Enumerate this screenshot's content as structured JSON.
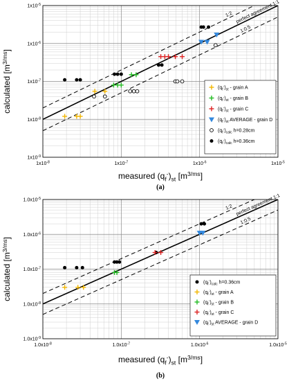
{
  "chart_data": [
    {
      "type": "scatter",
      "panel_label": "(a)",
      "xlabel": "measured (q_f^-)_st [m^3/ms]",
      "ylabel": "calculated [m^3/ms]",
      "log_x": true,
      "log_y": true,
      "xlim": [
        1e-08,
        1e-05
      ],
      "ylim": [
        1e-09,
        1e-05
      ],
      "x_ticks": [
        "1x10-8",
        "1x10-7",
        "1x10-6",
        "1x10-5"
      ],
      "y_ticks": [
        "1x10-5",
        "1x10-6",
        "1x10-7",
        "1x10-8",
        "1x10-9"
      ],
      "grid": true,
      "legend_position": "bottom-right",
      "reference_lines": [
        {
          "label": "perfect agreement 1:1",
          "factor": 1,
          "style": "solid"
        },
        {
          "label": "1:2",
          "factor": 2,
          "style": "dashed"
        },
        {
          "label": "1:0.5",
          "factor": 0.5,
          "style": "dashed"
        }
      ],
      "series": [
        {
          "name": "(q_f^-)_st - grain A",
          "marker": "plus",
          "color": "#f2b600",
          "points": [
            [
              1.9e-08,
              1.2e-08
            ],
            [
              2.7e-08,
              1.2e-08
            ],
            [
              3e-08,
              1.2e-08
            ],
            [
              4.6e-08,
              5.5e-08
            ],
            [
              6.2e-08,
              5.5e-08
            ]
          ]
        },
        {
          "name": "(q_f^-)_st - grain B",
          "marker": "plus",
          "color": "#22bb22",
          "points": [
            [
              8e-08,
              8e-08
            ],
            [
              9e-08,
              8e-08
            ],
            [
              1e-07,
              8e-08
            ],
            [
              1.35e-07,
              1.5e-07
            ],
            [
              1.55e-07,
              1.5e-07
            ]
          ]
        },
        {
          "name": "(q_f^-)_st - grain C",
          "marker": "plus",
          "color": "#dd2222",
          "points": [
            [
              3.2e-07,
              4.5e-07
            ],
            [
              3.6e-07,
              4.5e-07
            ],
            [
              4e-07,
              4.5e-07
            ],
            [
              4.9e-07,
              4.5e-07
            ],
            [
              6e-07,
              4.5e-07
            ]
          ]
        },
        {
          "name": "(q_f^-)_st AVERAGE - grain D",
          "marker": "triangle-down",
          "color": "#3388dd",
          "points": [
            [
              1.05e-06,
              1.1e-06
            ],
            [
              1.25e-06,
              1.1e-06
            ],
            [
              1.65e-06,
              1.7e-06
            ]
          ]
        },
        {
          "name": "(q_f^-)_calc h=0.28cm",
          "marker": "open-circle",
          "color": "#000000",
          "points": [
            [
              4.5e-08,
              4e-08
            ],
            [
              6.2e-08,
              4e-08
            ],
            [
              1.3e-07,
              5.5e-08
            ],
            [
              1.45e-07,
              5.5e-08
            ],
            [
              1.6e-07,
              5.5e-08
            ],
            [
              4.9e-07,
              1e-07
            ],
            [
              5.2e-07,
              1e-07
            ],
            [
              6e-07,
              1e-07
            ],
            [
              1.6e-06,
              9e-07
            ]
          ]
        },
        {
          "name": "(q_f^-)_calc h=0.36cm",
          "marker": "filled-circle",
          "color": "#000000",
          "points": [
            [
              1.9e-08,
              1.1e-07
            ],
            [
              2.7e-08,
              1.1e-07
            ],
            [
              3e-08,
              1.1e-07
            ],
            [
              8.2e-08,
              1.55e-07
            ],
            [
              9e-08,
              1.55e-07
            ],
            [
              1e-07,
              1.55e-07
            ],
            [
              3e-07,
              2.7e-07
            ],
            [
              3.3e-07,
              2.7e-07
            ],
            [
              1.05e-06,
              2.7e-06
            ],
            [
              1.12e-06,
              2.7e-06
            ],
            [
              1.3e-06,
              2.7e-06
            ]
          ]
        }
      ]
    },
    {
      "type": "scatter",
      "panel_label": "(b)",
      "xlabel": "measured (q_f^-)_st [m^3/ms]",
      "ylabel": "calculated [m^3/ms]",
      "log_x": true,
      "log_y": true,
      "xlim": [
        1e-08,
        1e-05
      ],
      "ylim": [
        1e-09,
        1e-05
      ],
      "x_ticks": [
        "1.0x10-8",
        "1.0x10-7",
        "1.0x10-6",
        "1.0x10-5"
      ],
      "y_ticks": [
        "1.0x10-5",
        "1.0x10-6",
        "1.0x10-7",
        "1.0x10-8",
        "1.0x10-9"
      ],
      "grid": true,
      "legend_position": "bottom-right",
      "reference_lines": [
        {
          "label": "perfect agreement 1:1",
          "factor": 1,
          "style": "solid"
        },
        {
          "label": "1:2",
          "factor": 2,
          "style": "dashed"
        },
        {
          "label": "1:0.5",
          "factor": 0.5,
          "style": "dashed"
        }
      ],
      "series": [
        {
          "name": "(q_f^-)_calc h=0.36cm",
          "marker": "filled-circle",
          "color": "#000000",
          "points": [
            [
              1.9e-08,
              1.1e-07
            ],
            [
              2.7e-08,
              1.1e-07
            ],
            [
              3.2e-08,
              1.1e-07
            ],
            [
              8.2e-08,
              1.6e-07
            ],
            [
              8.8e-08,
              1.6e-07
            ],
            [
              9.5e-08,
              1.6e-07
            ],
            [
              2.8e-07,
              3e-07
            ],
            [
              1.05e-06,
              2e-06
            ],
            [
              1.15e-06,
              2e-06
            ]
          ]
        },
        {
          "name": "(q_f^-)_st - grain A",
          "marker": "plus",
          "color": "#f2b600",
          "points": [
            [
              1.9e-08,
              3e-08
            ],
            [
              2.8e-08,
              3e-08
            ],
            [
              3.3e-08,
              3e-08
            ]
          ]
        },
        {
          "name": "(q_f^-)_st - grain B",
          "marker": "plus",
          "color": "#22bb22",
          "points": [
            [
              8.2e-08,
              8e-08
            ],
            [
              8.8e-08,
              8e-08
            ]
          ]
        },
        {
          "name": "(q_f^-)_st - grain C",
          "marker": "plus",
          "color": "#dd2222",
          "points": [
            [
              2.7e-07,
              3e-07
            ],
            [
              3.2e-07,
              3e-07
            ]
          ]
        },
        {
          "name": "(q_f^-)_st AVERAGE - grain D",
          "marker": "triangle-down",
          "color": "#3388dd",
          "points": [
            [
              1e-06,
              1.1e-06
            ],
            [
              1.1e-06,
              1.1e-06
            ]
          ]
        }
      ]
    }
  ]
}
